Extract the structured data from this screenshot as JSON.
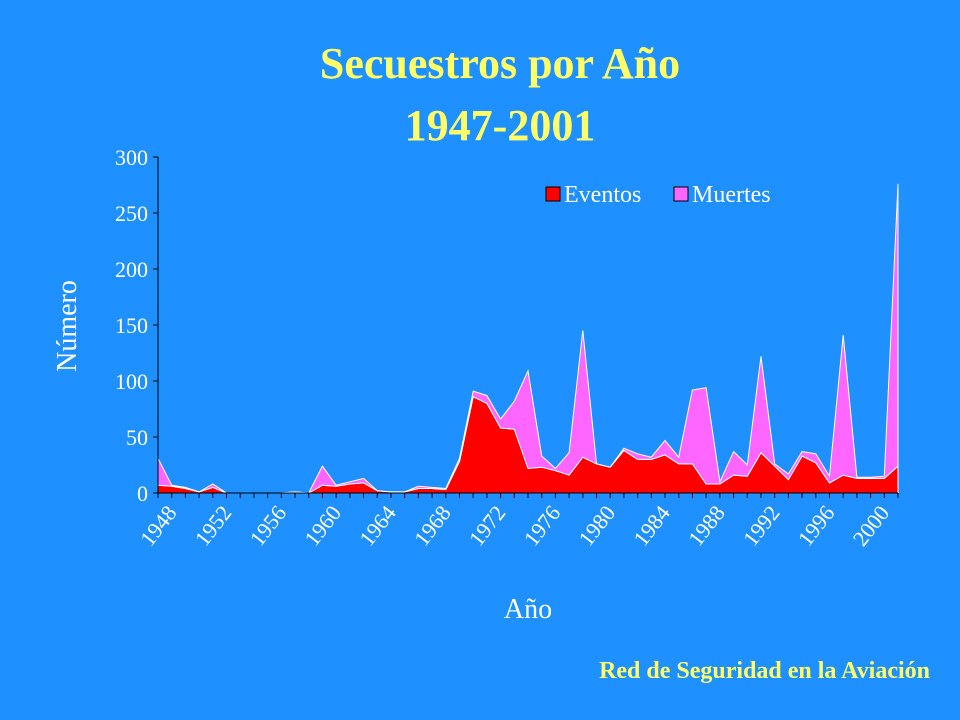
{
  "slide": {
    "title_line1": "Secuestros por Año",
    "title_line2": "1947-2001",
    "footer": "Red de Seguridad en la Aviación"
  },
  "colors": {
    "background": "#1E90FF",
    "title": "#FFFF66",
    "eventos": "#FF0000",
    "muertes": "#FF66FF"
  },
  "chart_data": {
    "type": "area",
    "stacked": true,
    "title": "Secuestros por Año 1947-2001",
    "xlabel": "Año",
    "ylabel": "Número",
    "ylim": [
      0,
      300
    ],
    "yticks": [
      0,
      50,
      100,
      150,
      200,
      250,
      300
    ],
    "xticks": [
      1948,
      1952,
      1956,
      1960,
      1964,
      1968,
      1972,
      1976,
      1980,
      1984,
      1988,
      1992,
      1996,
      2000
    ],
    "legend": "top-right",
    "x": [
      1947,
      1948,
      1949,
      1950,
      1951,
      1952,
      1953,
      1954,
      1955,
      1956,
      1957,
      1958,
      1959,
      1960,
      1961,
      1962,
      1963,
      1964,
      1965,
      1966,
      1967,
      1968,
      1969,
      1970,
      1971,
      1972,
      1973,
      1974,
      1975,
      1976,
      1977,
      1978,
      1979,
      1980,
      1981,
      1982,
      1983,
      1984,
      1985,
      1986,
      1987,
      1988,
      1989,
      1990,
      1991,
      1992,
      1993,
      1994,
      1995,
      1996,
      1997,
      1998,
      1999,
      2000,
      2001
    ],
    "series": [
      {
        "name": "Eventos",
        "values": [
          7,
          6,
          4,
          1,
          5,
          0,
          0,
          0,
          0,
          0,
          1,
          0,
          7,
          6,
          8,
          9,
          2,
          1,
          1,
          4,
          4,
          3,
          28,
          86,
          80,
          58,
          57,
          22,
          23,
          20,
          16,
          32,
          26,
          23,
          38,
          30,
          30,
          34,
          26,
          26,
          8,
          8,
          16,
          15,
          36,
          24,
          12,
          33,
          27,
          9,
          16,
          13,
          13,
          13,
          24
        ]
      },
      {
        "name": "Muertes",
        "values": [
          24,
          1,
          1,
          0,
          3,
          0,
          0,
          0,
          0,
          0,
          0,
          0,
          17,
          1,
          2,
          4,
          0,
          0,
          0,
          2,
          1,
          1,
          3,
          5,
          7,
          8,
          25,
          87,
          10,
          2,
          20,
          113,
          0,
          0,
          2,
          5,
          2,
          13,
          6,
          66,
          86,
          2,
          21,
          10,
          86,
          2,
          5,
          4,
          8,
          6,
          125,
          1,
          1,
          2,
          252
        ]
      }
    ]
  }
}
